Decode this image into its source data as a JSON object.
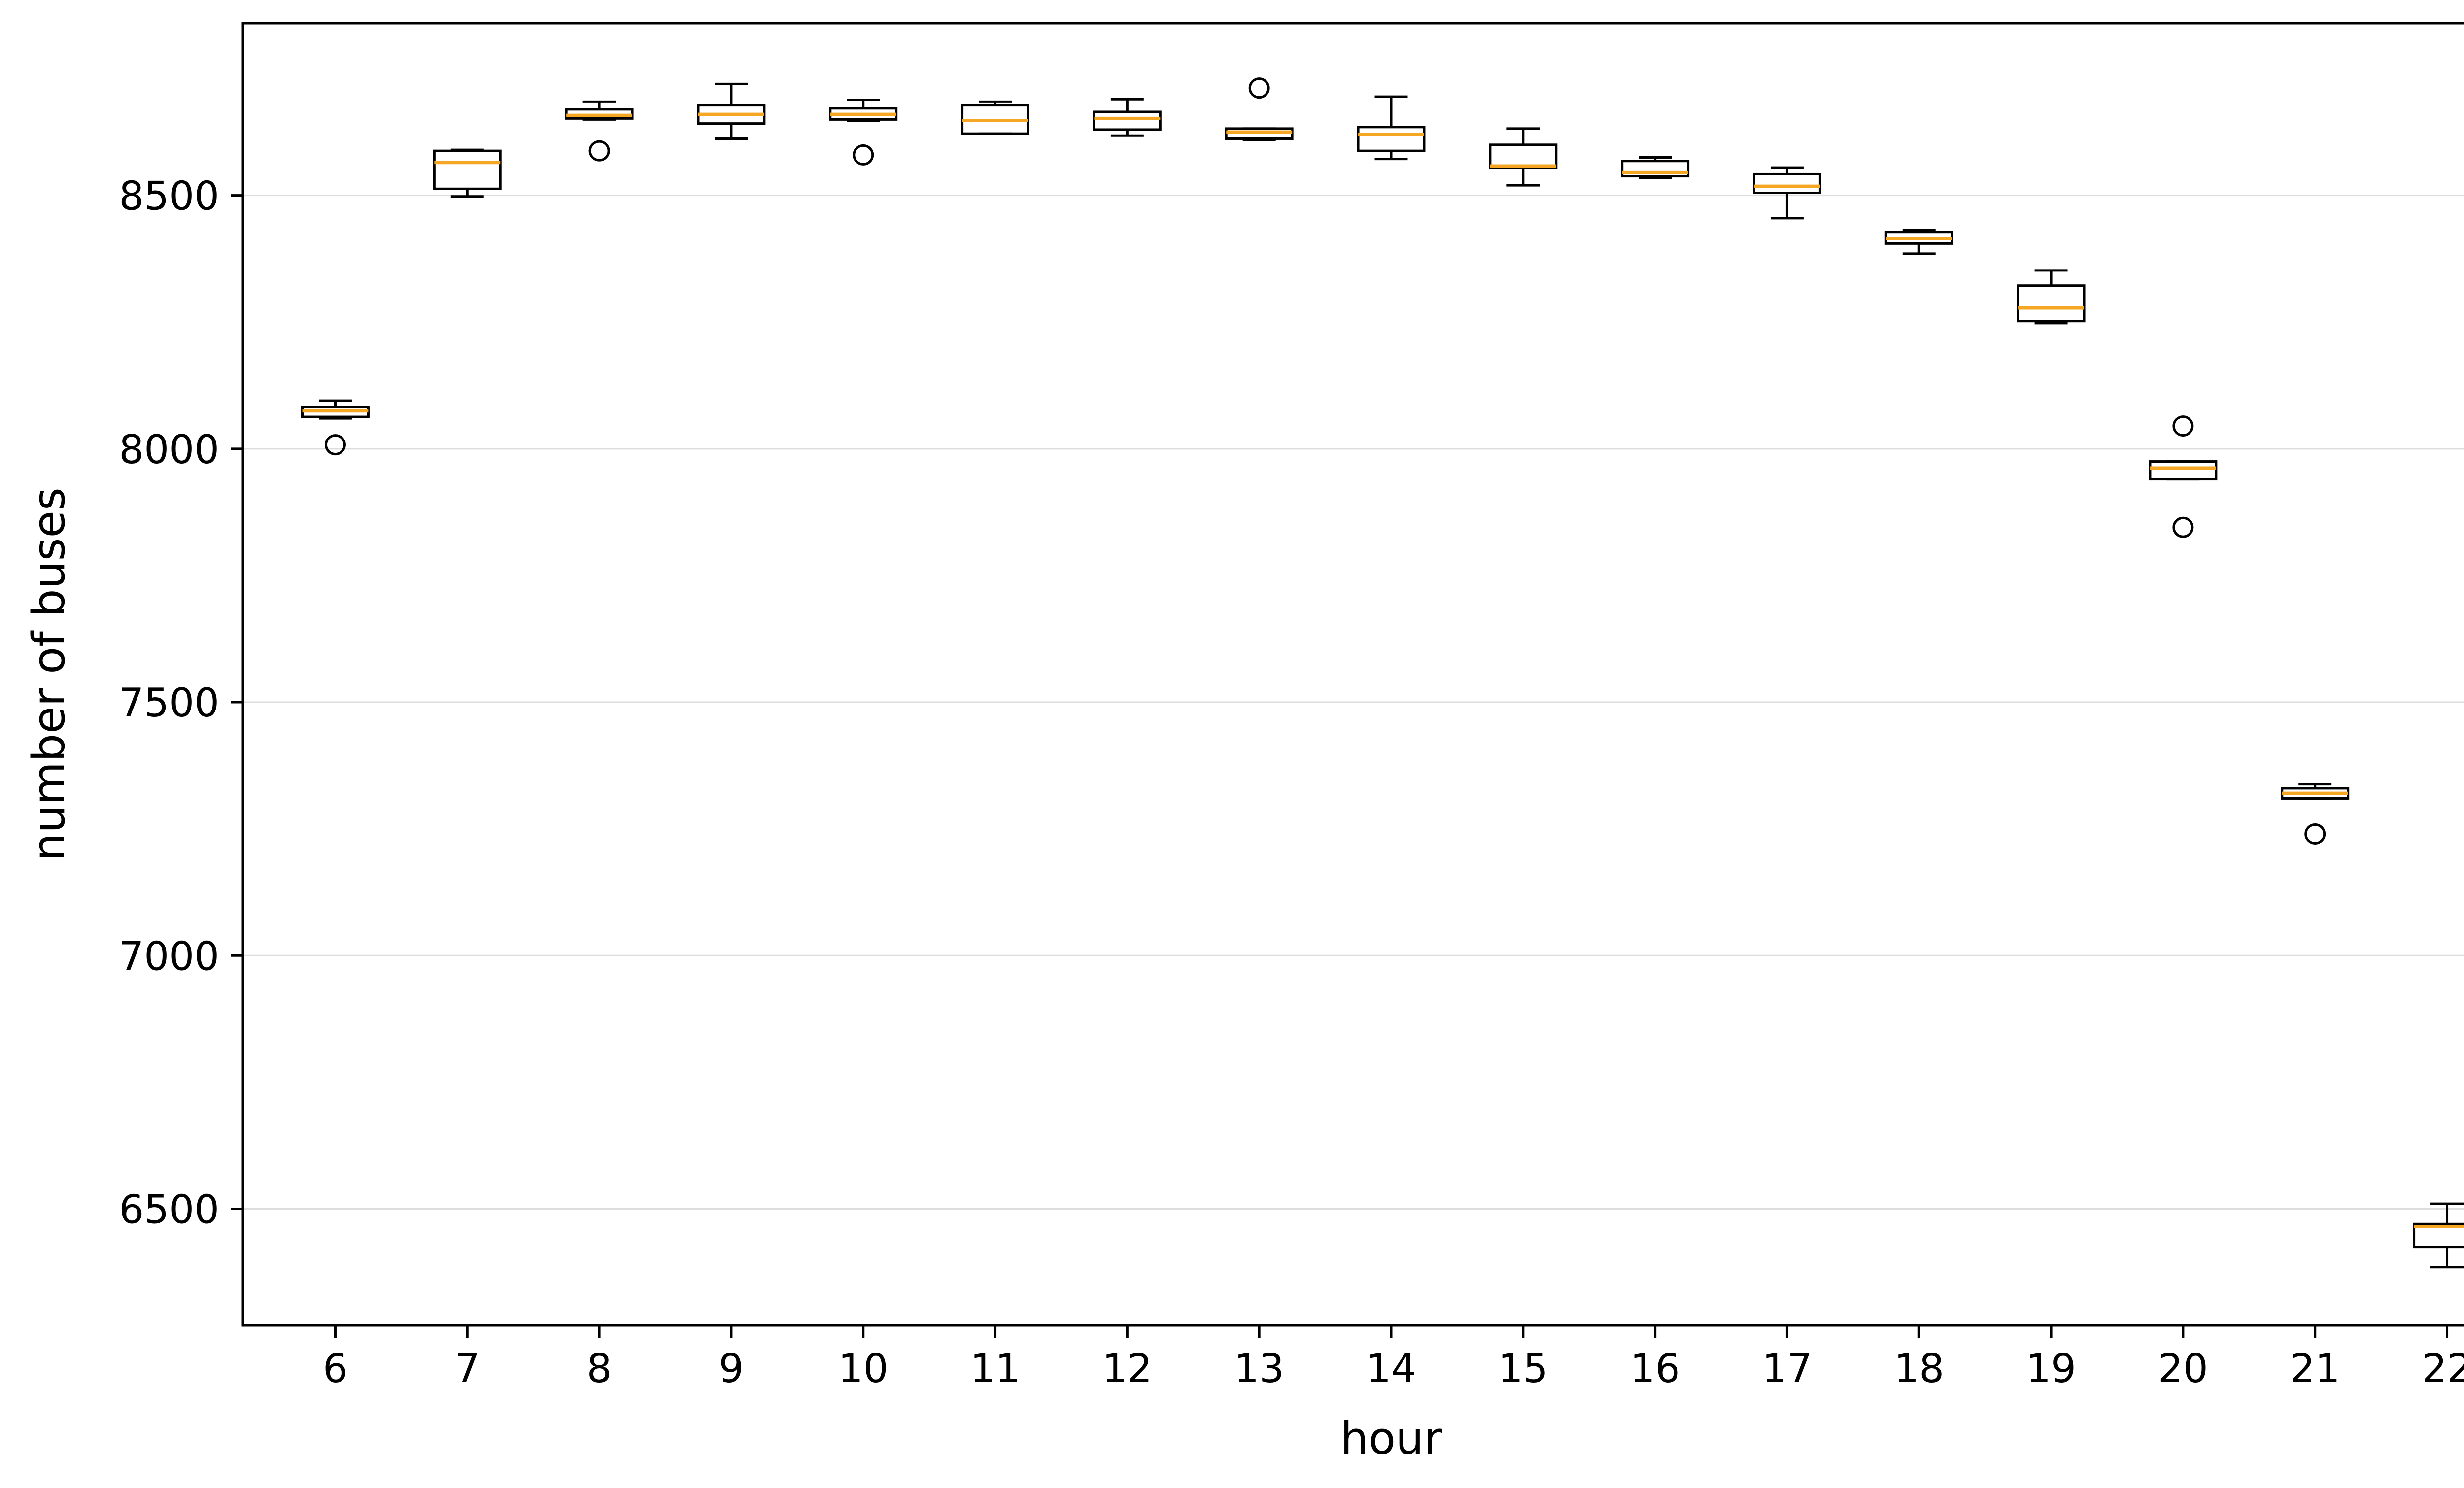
{
  "chart_data": {
    "type": "box",
    "xlabel": "hour",
    "ylabel": "number of buses",
    "ylim": [
      6270,
      8840
    ],
    "yticks": [
      6500,
      7000,
      7500,
      8000,
      8500
    ],
    "grid": "horizontal",
    "colors": {
      "box": "#000000",
      "median": "#f5a623",
      "grid": "#dddddd",
      "outlier": "#000000"
    },
    "categories": [
      "6",
      "7",
      "8",
      "9",
      "10",
      "11",
      "12",
      "13",
      "14",
      "15",
      "16",
      "17",
      "18",
      "19",
      "20",
      "21",
      "22"
    ],
    "boxes": [
      {
        "hour": "6",
        "whisker_low": 8060,
        "q1": 8063,
        "median": 8075,
        "q3": 8082,
        "whisker_high": 8095,
        "outliers": [
          8008
        ]
      },
      {
        "hour": "7",
        "whisker_low": 8498,
        "q1": 8513,
        "median": 8565,
        "q3": 8588,
        "whisker_high": 8590,
        "outliers": []
      },
      {
        "hour": "8",
        "whisker_low": 8650,
        "q1": 8652,
        "median": 8658,
        "q3": 8670,
        "whisker_high": 8685,
        "outliers": [
          8588
        ]
      },
      {
        "hour": "9",
        "whisker_low": 8612,
        "q1": 8642,
        "median": 8660,
        "q3": 8678,
        "whisker_high": 8720,
        "outliers": []
      },
      {
        "hour": "10",
        "whisker_low": 8648,
        "q1": 8650,
        "median": 8660,
        "q3": 8672,
        "whisker_high": 8688,
        "outliers": [
          8580
        ]
      },
      {
        "hour": "11",
        "whisker_low": 8622,
        "q1": 8622,
        "median": 8648,
        "q3": 8678,
        "whisker_high": 8685,
        "outliers": []
      },
      {
        "hour": "12",
        "whisker_low": 8618,
        "q1": 8630,
        "median": 8652,
        "q3": 8665,
        "whisker_high": 8690,
        "outliers": []
      },
      {
        "hour": "13",
        "whisker_low": 8610,
        "q1": 8612,
        "median": 8625,
        "q3": 8632,
        "whisker_high": 8632,
        "outliers": [
          8712
        ]
      },
      {
        "hour": "14",
        "whisker_low": 8572,
        "q1": 8588,
        "median": 8620,
        "q3": 8635,
        "whisker_high": 8695,
        "outliers": []
      },
      {
        "hour": "15",
        "whisker_low": 8520,
        "q1": 8555,
        "median": 8558,
        "q3": 8600,
        "whisker_high": 8632,
        "outliers": []
      },
      {
        "hour": "16",
        "whisker_low": 8535,
        "q1": 8538,
        "median": 8545,
        "q3": 8568,
        "whisker_high": 8575,
        "outliers": []
      },
      {
        "hour": "17",
        "whisker_low": 8455,
        "q1": 8505,
        "median": 8518,
        "q3": 8542,
        "whisker_high": 8555,
        "outliers": []
      },
      {
        "hour": "18",
        "whisker_low": 8385,
        "q1": 8405,
        "median": 8415,
        "q3": 8428,
        "whisker_high": 8432,
        "outliers": []
      },
      {
        "hour": "19",
        "whisker_low": 8248,
        "q1": 8252,
        "median": 8278,
        "q3": 8322,
        "whisker_high": 8352,
        "outliers": []
      },
      {
        "hour": "20",
        "whisker_low": 7940,
        "q1": 7940,
        "median": 7962,
        "q3": 7975,
        "whisker_high": 7975,
        "outliers": [
          8045,
          7845
        ]
      },
      {
        "hour": "21",
        "whisker_low": 7310,
        "q1": 7310,
        "median": 7320,
        "q3": 7330,
        "whisker_high": 7338,
        "outliers": [
          7240
        ]
      },
      {
        "hour": "22",
        "whisker_low": 6385,
        "q1": 6425,
        "median": 6465,
        "q3": 6470,
        "whisker_high": 6510,
        "outliers": []
      }
    ]
  }
}
